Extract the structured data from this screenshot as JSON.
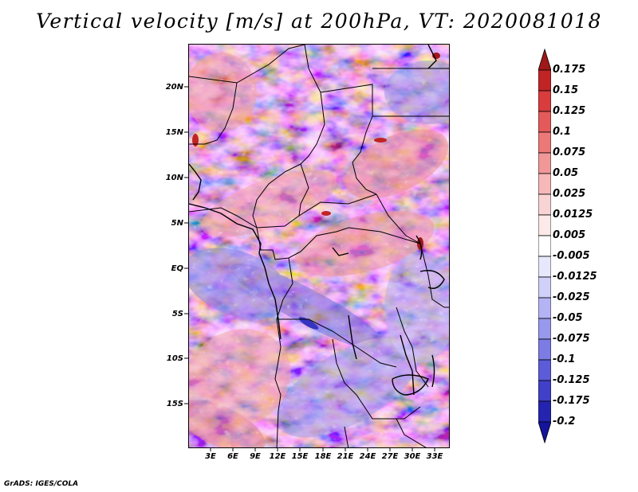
{
  "title": "Vertical velocity [m/s] at 200hPa, VT: 2020081018",
  "credit": "GrADS: IGES/COLA",
  "map": {
    "field": "Vertical velocity",
    "units": "m/s",
    "level": "200hPa",
    "valid_time": "2020081018",
    "lat_ticks": [
      "20N",
      "15N",
      "10N",
      "5N",
      "EQ",
      "5S",
      "10S",
      "15S"
    ],
    "lon_ticks": [
      "3E",
      "6E",
      "9E",
      "12E",
      "15E",
      "18E",
      "21E",
      "24E",
      "27E",
      "30E",
      "33E"
    ]
  },
  "colorbar": {
    "labels": [
      "0.175",
      "0.15",
      "0.125",
      "0.1",
      "0.075",
      "0.05",
      "0.025",
      "0.0125",
      "0.005",
      "-0.005",
      "-0.0125",
      "-0.025",
      "-0.05",
      "-0.075",
      "-0.1",
      "-0.125",
      "-0.175",
      "-0.2"
    ],
    "colors": [
      "#a01818",
      "#c02424",
      "#d83c3c",
      "#e45a5a",
      "#ec7878",
      "#f09898",
      "#f6b8b8",
      "#f9d4d4",
      "#fceaea",
      "#ffffff",
      "#e8e8fc",
      "#d0d0f8",
      "#b4b4f4",
      "#9898ec",
      "#7c7ce4",
      "#5c5cd8",
      "#4040c8",
      "#2424b0",
      "#14149c"
    ]
  }
}
